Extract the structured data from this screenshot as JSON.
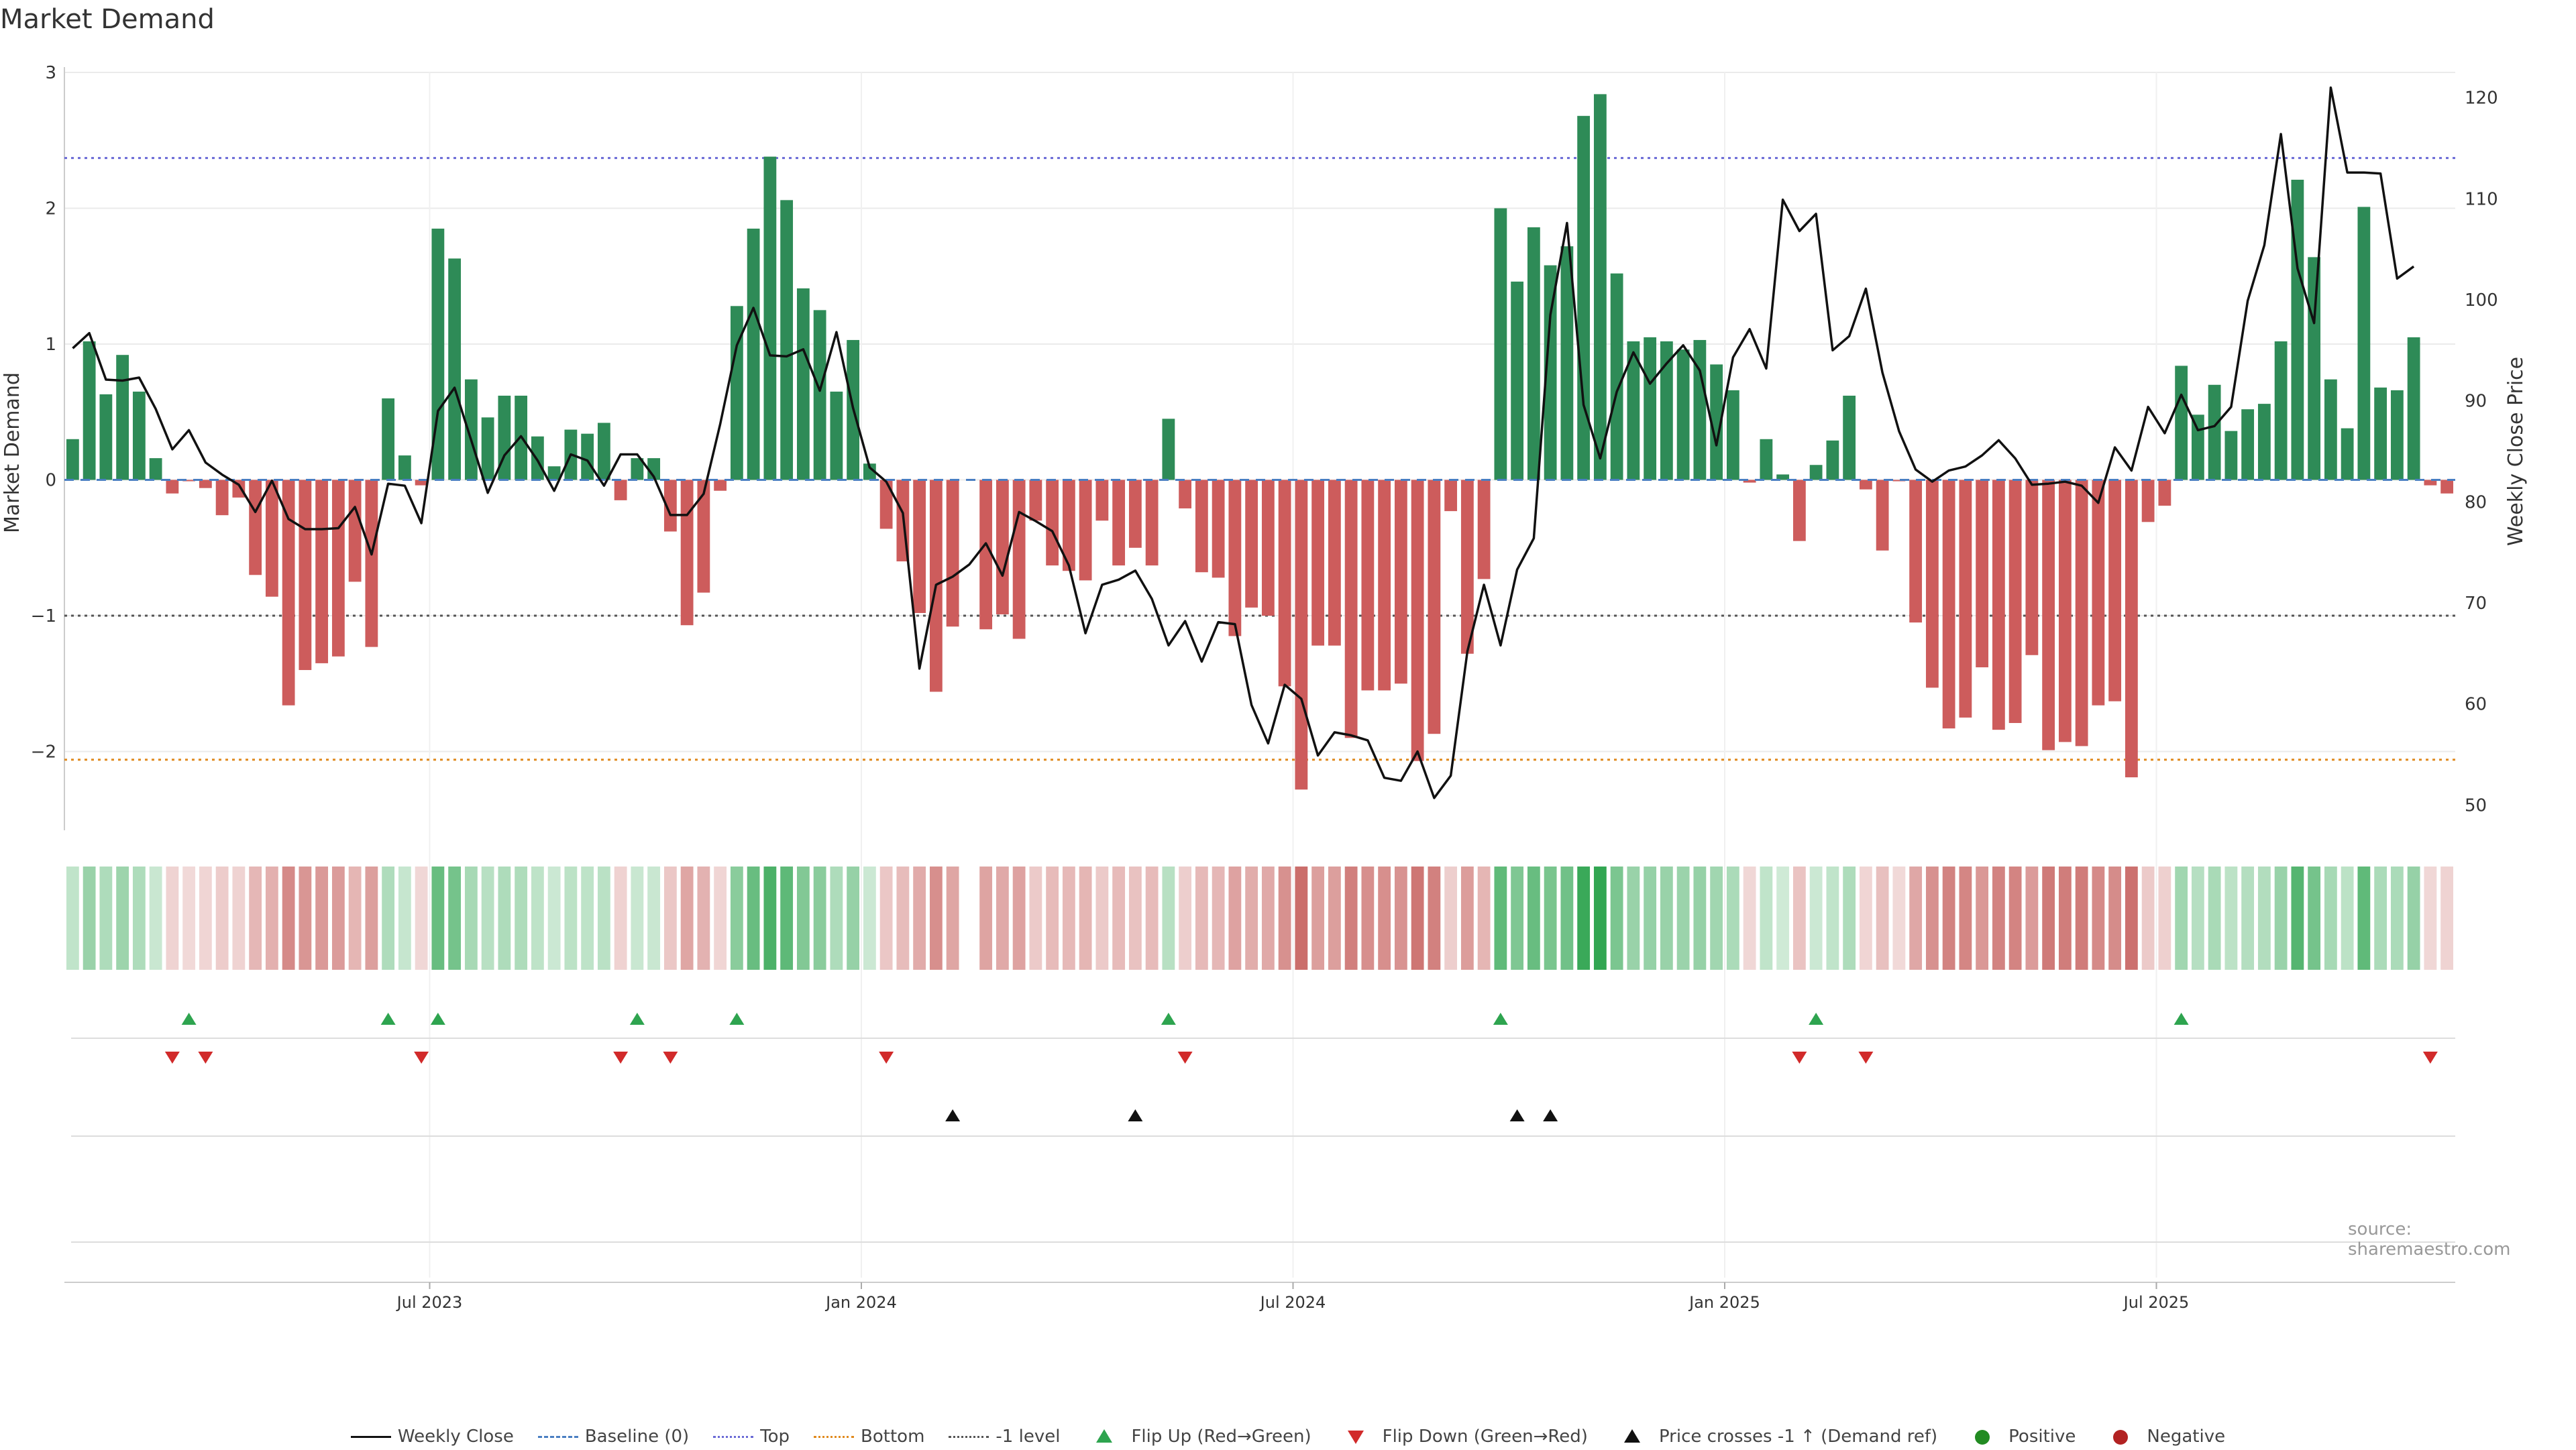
{
  "title": "Market Demand",
  "source": "source: sharemaestro.com",
  "colors": {
    "positive_bar": "#2e8b57",
    "negative_bar": "#cd5c5c",
    "price_line": "#111111",
    "top_line": "#6a6ad6",
    "bottom_line": "#e08a1e",
    "minus1_line": "#555555",
    "flip_up": "#2ea44f",
    "flip_down": "#d12a2a",
    "cross": "#111111"
  },
  "legend": [
    {
      "label": "Weekly Close",
      "icon": "line-icon"
    },
    {
      "label": "Baseline (0)",
      "icon": "dash-icon"
    },
    {
      "label": "Top",
      "icon": "dotted-purple-icon"
    },
    {
      "label": "Bottom",
      "icon": "dotted-orange-icon"
    },
    {
      "label": "-1 level",
      "icon": "dotted-gray-icon"
    },
    {
      "label": "Flip Up (Red→Green)",
      "icon": "triangle-up-green-icon"
    },
    {
      "label": "Flip Down (Green→Red)",
      "icon": "triangle-down-red-icon"
    },
    {
      "label": "Price crosses -1 ↑ (Demand ref)",
      "icon": "triangle-up-black-icon"
    },
    {
      "label": "Positive",
      "icon": "circle-green-icon"
    },
    {
      "label": "Negative",
      "icon": "circle-red-icon"
    }
  ],
  "chart_data": {
    "type": "bar",
    "title": "Market Demand",
    "ylabel": "Market Demand",
    "y2label": "Weekly Close Price",
    "ylim": [
      -2.58,
      3.0
    ],
    "y2lim": [
      47.5,
      122.5
    ],
    "yticks": [
      -2,
      -1,
      0,
      1,
      2,
      3
    ],
    "y2ticks": [
      50,
      60,
      70,
      80,
      90,
      100,
      110,
      120
    ],
    "xticks": [
      {
        "label": "Jul 2023",
        "week": 22
      },
      {
        "label": "Jan 2024",
        "week": 48
      },
      {
        "label": "Jul 2024",
        "week": 74
      },
      {
        "label": "Jan 2025",
        "week": 100
      },
      {
        "label": "Jul 2025",
        "week": 126
      }
    ],
    "reference_lines": {
      "baseline": 0,
      "top": 2.37,
      "bottom": -2.06,
      "minus1": -1.0
    },
    "series": [
      {
        "name": "Market Demand",
        "values": [
          0.3,
          1.02,
          0.63,
          0.92,
          0.65,
          0.16,
          -0.1,
          -0.01,
          -0.06,
          -0.26,
          -0.13,
          -0.7,
          -0.86,
          -1.66,
          -1.4,
          -1.35,
          -1.3,
          -0.75,
          -1.23,
          0.6,
          0.18,
          -0.04,
          1.85,
          1.63,
          0.74,
          0.46,
          0.62,
          0.62,
          0.32,
          0.1,
          0.37,
          0.34,
          0.42,
          -0.15,
          0.16,
          0.16,
          -0.38,
          -1.07,
          -0.83,
          -0.08,
          1.28,
          1.85,
          2.38,
          2.06,
          1.41,
          1.25,
          0.65,
          1.03,
          0.12,
          -0.36,
          -0.6,
          -0.98,
          -1.56,
          -1.08,
          0,
          -1.1,
          -0.99,
          -1.17,
          -0.3,
          -0.63,
          -0.67,
          -0.74,
          -0.3,
          -0.63,
          -0.5,
          -0.63,
          0.45,
          -0.21,
          -0.68,
          -0.72,
          -1.15,
          -0.94,
          -1.0,
          -1.52,
          -2.28,
          -1.22,
          -1.22,
          -1.9,
          -1.55,
          -1.55,
          -1.5,
          -2.07,
          -1.87,
          -0.23,
          -1.28,
          -0.73,
          2.0,
          1.46,
          1.86,
          1.58,
          1.72,
          2.68,
          2.84,
          1.52,
          1.02,
          1.05,
          1.02,
          0.96,
          1.03,
          0.85,
          0.66,
          -0.02,
          0.3,
          0.04,
          -0.45,
          0.11,
          0.29,
          0.62,
          -0.07,
          -0.52,
          -0.01,
          -1.05,
          -1.53,
          -1.83,
          -1.75,
          -1.38,
          -1.84,
          -1.79,
          -1.29,
          -1.99,
          -1.93,
          -1.96,
          -1.66,
          -1.63,
          -2.19,
          -0.31,
          -0.19,
          0.84,
          0.48,
          0.7,
          0.36,
          0.52,
          0.56,
          1.02,
          2.21,
          1.64,
          0.74,
          0.38,
          2.01,
          0.68,
          0.66,
          1.05,
          -0.04,
          -0.1
        ]
      },
      {
        "name": "Weekly Close",
        "values": [
          95.2,
          96.7,
          92.1,
          92.0,
          92.3,
          89.2,
          85.2,
          87.1,
          83.9,
          82.7,
          81.7,
          79.0,
          82.1,
          78.3,
          77.3,
          77.3,
          77.4,
          79.5,
          74.8,
          81.8,
          81.6,
          77.9,
          89.0,
          91.3,
          86.1,
          80.9,
          84.6,
          86.5,
          84.1,
          81.1,
          84.7,
          84.1,
          81.6,
          84.7,
          84.7,
          82.5,
          78.7,
          78.7,
          80.8,
          87.7,
          95.5,
          99.2,
          94.5,
          94.4,
          95.1,
          91.0,
          96.8,
          89.3,
          83.4,
          82.0,
          78.9,
          63.5,
          71.8,
          72.6,
          73.8,
          75.9,
          72.7,
          79.0,
          78.1,
          77.1,
          73.7,
          67.0,
          71.8,
          72.3,
          73.2,
          70.4,
          65.8,
          68.2,
          64.2,
          68.1,
          67.9,
          59.9,
          56.1,
          61.9,
          60.5,
          54.9,
          57.2,
          56.9,
          56.4,
          52.7,
          52.4,
          55.3,
          50.7,
          52.9,
          65.2,
          71.8,
          65.8,
          73.3,
          76.4,
          98.5,
          107.6,
          89.6,
          84.3,
          90.9,
          94.8,
          91.7,
          93.7,
          95.5,
          93.0,
          85.6,
          94.3,
          97.1,
          93.2,
          109.9,
          106.8,
          108.5,
          95.0,
          96.4,
          101.1,
          92.8,
          87.0,
          83.2,
          82.0,
          83.1,
          83.5,
          84.6,
          86.1,
          84.3,
          81.7,
          81.8,
          82.0,
          81.6,
          79.9,
          85.4,
          83.1,
          89.4,
          86.8,
          90.6,
          87.1,
          87.5,
          89.4,
          99.9,
          105.4,
          116.4,
          103.1,
          97.7,
          121.0,
          112.6,
          112.6,
          112.5,
          102.1,
          103.3
        ]
      }
    ],
    "flip_up_weeks": [
      7,
      19,
      22,
      34,
      40,
      66,
      86,
      105,
      127
    ],
    "flip_down_weeks": [
      6,
      8,
      21,
      33,
      36,
      49,
      67,
      104,
      108,
      142
    ],
    "cross_up_weeks": [
      53,
      64,
      87,
      89
    ]
  }
}
